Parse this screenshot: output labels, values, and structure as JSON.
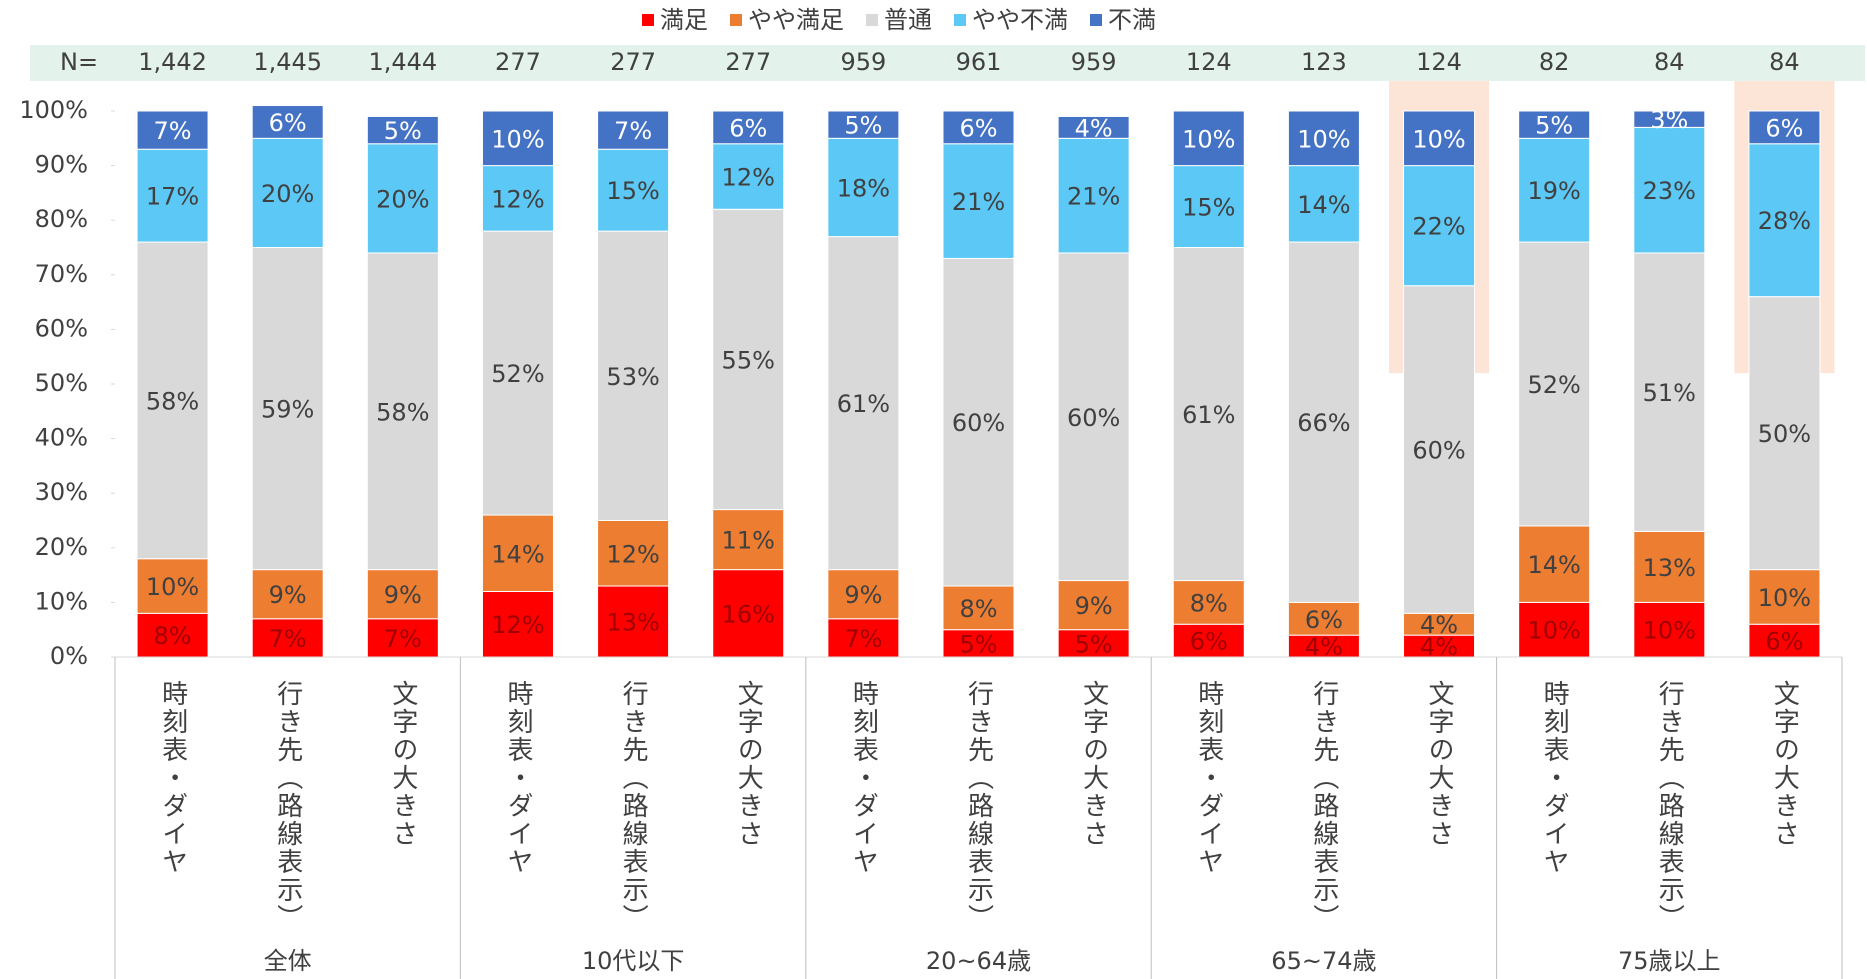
{
  "chart_data": {
    "type": "stacked_bar",
    "legend_position": "top",
    "n_title": "N=",
    "n_values": [
      "1,442",
      "1,445",
      "1,444",
      "277",
      "277",
      "277",
      "959",
      "961",
      "959",
      "124",
      "123",
      "124",
      "82",
      "84",
      "84"
    ],
    "categories": [
      "時刻表・ダイヤ",
      "行き先（路線表示）",
      "文字の大きさ",
      "時刻表・ダイヤ",
      "行き先（路線表示）",
      "文字の大きさ",
      "時刻表・ダイヤ",
      "行き先（路線表示）",
      "文字の大きさ",
      "時刻表・ダイヤ",
      "行き先（路線表示）",
      "文字の大きさ",
      "時刻表・ダイヤ",
      "行き先（路線表示）",
      "文字の大きさ"
    ],
    "groups": [
      "全体",
      "10代以下",
      "20~64歳",
      "65~74歳",
      "75歳以上"
    ],
    "highlight": [
      11,
      14
    ],
    "ylim": [
      0,
      100
    ],
    "yticks": [
      {
        "value": 0,
        "label": "0%"
      },
      {
        "value": 10,
        "label": "10%"
      },
      {
        "value": 20,
        "label": "20%"
      },
      {
        "value": 30,
        "label": "30%"
      },
      {
        "value": 40,
        "label": "40%"
      },
      {
        "value": 50,
        "label": "50%"
      },
      {
        "value": 60,
        "label": "60%"
      },
      {
        "value": 70,
        "label": "70%"
      },
      {
        "value": 80,
        "label": "80%"
      },
      {
        "value": 90,
        "label": "90%"
      },
      {
        "value": 100,
        "label": "100%"
      }
    ],
    "series": [
      {
        "name": "満足",
        "color": "#ff0000",
        "label_color": "#a00000",
        "values": [
          8,
          7,
          7,
          12,
          13,
          16,
          7,
          5,
          5,
          6,
          4,
          4,
          10,
          10,
          6
        ],
        "value_labels": [
          "8%",
          "7%",
          "7%",
          "12%",
          "13%",
          "16%",
          "7%",
          "5%",
          "5%",
          "6%",
          "4%",
          "4%",
          "10%",
          "10%",
          "6%"
        ]
      },
      {
        "name": "やや満足",
        "color": "#ed7d31",
        "label_color": "#404040",
        "values": [
          10,
          9,
          9,
          14,
          12,
          11,
          9,
          8,
          9,
          8,
          6,
          4,
          14,
          13,
          10
        ],
        "value_labels": [
          "10%",
          "9%",
          "9%",
          "14%",
          "12%",
          "11%",
          "9%",
          "8%",
          "9%",
          "8%",
          "6%",
          "4%",
          "14%",
          "13%",
          "10%"
        ]
      },
      {
        "name": "普通",
        "color": "#d9d9d9",
        "label_color": "#404040",
        "values": [
          58,
          59,
          58,
          52,
          53,
          55,
          61,
          60,
          60,
          61,
          66,
          60,
          52,
          51,
          50
        ],
        "value_labels": [
          "58%",
          "59%",
          "58%",
          "52%",
          "53%",
          "55%",
          "61%",
          "60%",
          "60%",
          "61%",
          "66%",
          "60%",
          "52%",
          "51%",
          "50%"
        ]
      },
      {
        "name": "やや不満",
        "color": "#5bc8f5",
        "label_color": "#404040",
        "values": [
          17,
          20,
          20,
          12,
          15,
          12,
          18,
          21,
          21,
          15,
          14,
          22,
          19,
          23,
          28
        ],
        "value_labels": [
          "17%",
          "20%",
          "20%",
          "12%",
          "15%",
          "12%",
          "18%",
          "21%",
          "21%",
          "15%",
          "14%",
          "22%",
          "19%",
          "23%",
          "28%"
        ]
      },
      {
        "name": "不満",
        "color": "#4472c4",
        "label_color": "#ffffff",
        "values": [
          7,
          6,
          5,
          10,
          7,
          6,
          5,
          6,
          4,
          10,
          10,
          10,
          5,
          3,
          6
        ],
        "value_labels": [
          "7%",
          "6%",
          "5%",
          "10%",
          "7%",
          "6%",
          "5%",
          "6%",
          "4%",
          "10%",
          "10%",
          "10%",
          "5%",
          "3%",
          "6%"
        ]
      }
    ]
  }
}
